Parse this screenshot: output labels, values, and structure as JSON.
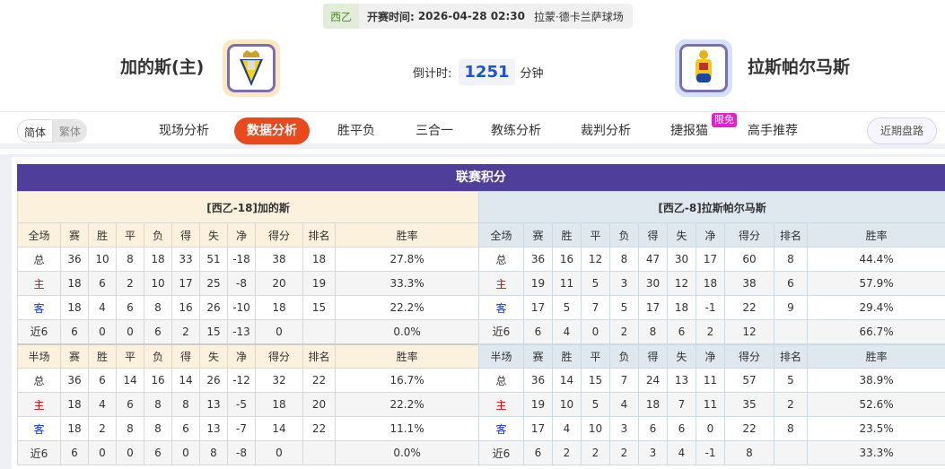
{
  "match": {
    "league": "西乙",
    "kickoff_label": "开赛时间:",
    "kickoff": "2026-04-28 02:30",
    "venue": "拉蒙·德卡兰萨球场"
  },
  "home": {
    "name": "加的斯(主)",
    "logo": "cadiz-crest"
  },
  "away": {
    "name": "拉斯帕尔马斯",
    "logo": "las-palmas-crest"
  },
  "countdown": {
    "label": "倒计时:",
    "value": "1251",
    "unit": "分钟"
  },
  "lang": {
    "simplified": "简体",
    "traditional": "繁体"
  },
  "tabs": [
    "现场分析",
    "数据分析",
    "胜平负",
    "三合一",
    "教练分析",
    "裁判分析",
    "捷报猫",
    "高手推荐"
  ],
  "active_tab": "数据分析",
  "badge": "限免",
  "recent_button": "近期盘路",
  "colors": {
    "accent": "#e8491d",
    "title_bar": "#4f3f9b",
    "home": "#e00000",
    "away": "#1030e0"
  },
  "standings": {
    "title": "联赛积分",
    "columns": [
      "赛",
      "胜",
      "平",
      "负",
      "得",
      "失",
      "净",
      "得分",
      "排名",
      "胜率"
    ],
    "full_label": "全场",
    "half_label": "半场",
    "home": {
      "title": "[西乙-18]加的斯",
      "full": [
        [
          "总",
          "36",
          "10",
          "8",
          "18",
          "33",
          "51",
          "-18",
          "38",
          "18",
          "27.8%"
        ],
        [
          "主",
          "18",
          "6",
          "2",
          "10",
          "17",
          "25",
          "-8",
          "20",
          "19",
          "33.3%"
        ],
        [
          "客",
          "18",
          "4",
          "6",
          "8",
          "16",
          "26",
          "-10",
          "18",
          "15",
          "22.2%"
        ],
        [
          "近6",
          "6",
          "0",
          "0",
          "6",
          "2",
          "15",
          "-13",
          "0",
          "",
          "0.0%"
        ]
      ],
      "half": [
        [
          "总",
          "36",
          "6",
          "14",
          "16",
          "14",
          "26",
          "-12",
          "32",
          "22",
          "16.7%"
        ],
        [
          "主",
          "18",
          "4",
          "6",
          "8",
          "8",
          "13",
          "-5",
          "18",
          "20",
          "22.2%"
        ],
        [
          "客",
          "18",
          "2",
          "8",
          "8",
          "6",
          "13",
          "-7",
          "14",
          "22",
          "11.1%"
        ],
        [
          "近6",
          "6",
          "0",
          "0",
          "6",
          "0",
          "8",
          "-8",
          "0",
          "",
          "0.0%"
        ]
      ]
    },
    "away": {
      "title": "[西乙-8]拉斯帕尔马斯",
      "full": [
        [
          "总",
          "36",
          "16",
          "12",
          "8",
          "47",
          "30",
          "17",
          "60",
          "8",
          "44.4%"
        ],
        [
          "主",
          "19",
          "11",
          "5",
          "3",
          "30",
          "12",
          "18",
          "38",
          "6",
          "57.9%"
        ],
        [
          "客",
          "17",
          "5",
          "7",
          "5",
          "17",
          "18",
          "-1",
          "22",
          "9",
          "29.4%"
        ],
        [
          "近6",
          "6",
          "4",
          "0",
          "2",
          "8",
          "6",
          "2",
          "12",
          "",
          "66.7%"
        ]
      ],
      "half": [
        [
          "总",
          "36",
          "14",
          "15",
          "7",
          "24",
          "13",
          "11",
          "57",
          "5",
          "38.9%"
        ],
        [
          "主",
          "19",
          "10",
          "5",
          "4",
          "18",
          "7",
          "11",
          "35",
          "2",
          "52.6%"
        ],
        [
          "客",
          "17",
          "4",
          "10",
          "3",
          "6",
          "6",
          "0",
          "22",
          "8",
          "23.5%"
        ],
        [
          "近6",
          "6",
          "2",
          "2",
          "2",
          "3",
          "4",
          "-1",
          "8",
          "",
          "33.3%"
        ]
      ]
    }
  }
}
